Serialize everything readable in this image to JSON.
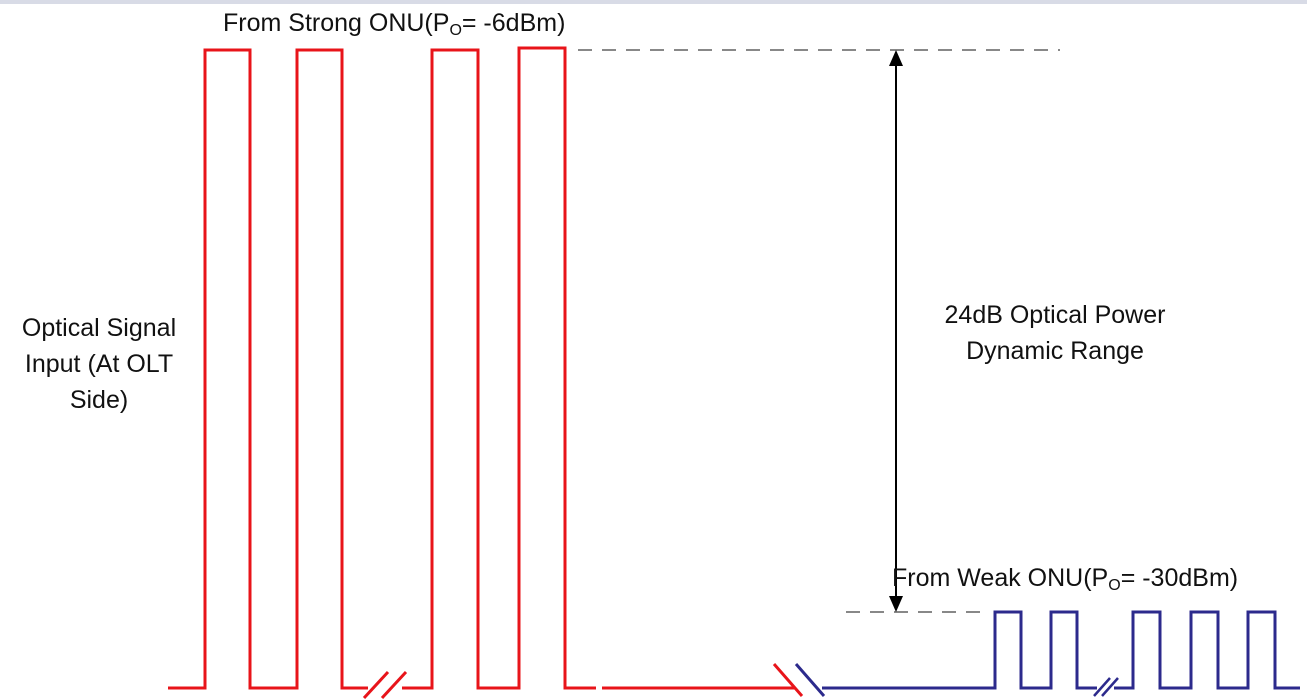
{
  "labels": {
    "strong_prefix": "From Strong ONU(P",
    "strong_sub": "O",
    "strong_suffix": "= -6dBm)",
    "weak_prefix": "From Weak ONU(P",
    "weak_sub": "O",
    "weak_suffix": "= -30dBm)",
    "signal_input": "Optical Signal Input (At OLT Side)",
    "dynamic_range": "24dB Optical Power Dynamic Range"
  },
  "colors": {
    "strong_signal": "#e8141a",
    "weak_signal": "#2c2a8c",
    "reference_line": "#888888",
    "arrow": "#000000",
    "text": "#111111"
  },
  "icons": {
    "break_mark": "double-slash-break-icon",
    "arrow": "double-headed-arrow-icon"
  }
}
